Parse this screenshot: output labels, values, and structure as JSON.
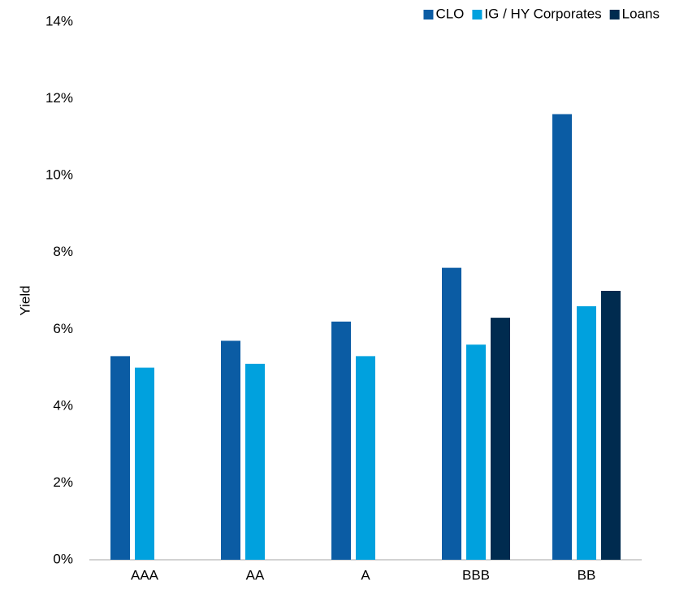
{
  "chart_data": {
    "type": "bar",
    "ylabel": "Yield",
    "categories": [
      "AAA",
      "AA",
      "A",
      "BBB",
      "BB"
    ],
    "series": [
      {
        "name": "CLO",
        "color": "#0b5ca4",
        "values": [
          5.3,
          5.7,
          6.2,
          7.6,
          11.6
        ]
      },
      {
        "name": "IG / HY Corporates",
        "color": "#00a1de",
        "values": [
          5.0,
          5.1,
          5.3,
          5.6,
          6.6
        ]
      },
      {
        "name": "Loans",
        "color": "#002b4f",
        "values": [
          null,
          null,
          null,
          6.3,
          7.0
        ]
      }
    ],
    "ylim": [
      0,
      14
    ],
    "yticks": [
      {
        "value": 0,
        "label": "0%"
      },
      {
        "value": 2,
        "label": "2%"
      },
      {
        "value": 4,
        "label": "4%"
      },
      {
        "value": 6,
        "label": "6%"
      },
      {
        "value": 8,
        "label": "8%"
      },
      {
        "value": 10,
        "label": "10%"
      },
      {
        "value": 12,
        "label": "12%"
      },
      {
        "value": 14,
        "label": "14%"
      }
    ],
    "grid": false,
    "legend": "top-right"
  }
}
